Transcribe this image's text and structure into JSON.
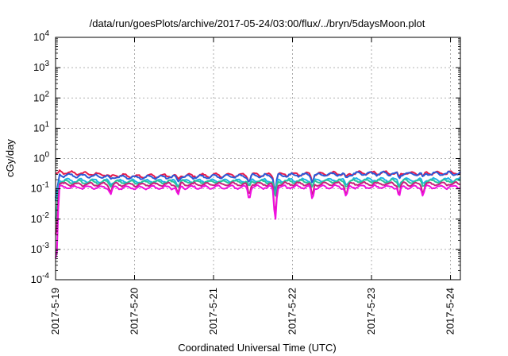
{
  "chart_data": {
    "type": "line",
    "title": "/data/run/goesPlots/archive/2017-05-24/03:00/flux/../bryn/5daysMoon.plot",
    "xlabel": "Coordinated Universal Time (UTC)",
    "ylabel": "cGy/day",
    "yscale": "log",
    "ylim_exponent": [
      -4,
      4
    ],
    "y_tick_labels": [
      {
        "base": "10",
        "exp": "-4"
      },
      {
        "base": "10",
        "exp": "-3"
      },
      {
        "base": "10",
        "exp": "-2"
      },
      {
        "base": "10",
        "exp": "-1"
      },
      {
        "base": "10",
        "exp": "0"
      },
      {
        "base": "10",
        "exp": "1"
      },
      {
        "base": "10",
        "exp": "2"
      },
      {
        "base": "10",
        "exp": "3"
      },
      {
        "base": "10",
        "exp": "4"
      }
    ],
    "x_tick_labels": [
      "2017-5-19",
      "2017-5-20",
      "2017-5-21",
      "2017-5-22",
      "2017-5-23",
      "2017-5-24"
    ],
    "xlim_days": [
      0,
      5.125
    ],
    "grid": true,
    "legend": "none",
    "series": [
      {
        "color": "#e6194b",
        "values_log10": [
          -0.5,
          -0.45,
          -0.58,
          -0.56,
          -0.52,
          -0.48
        ]
      },
      {
        "color": "#2a5ad7",
        "values_log10": [
          -1.3,
          -0.55,
          -0.62,
          -0.6,
          -0.55,
          -0.5
        ]
      },
      {
        "color": "#1fb3e6",
        "values_log10": [
          -1.4,
          -0.72,
          -0.75,
          -0.74,
          -0.72,
          -0.7
        ]
      },
      {
        "color": "#2bc39b",
        "values_log10": [
          -2.0,
          -0.78,
          -0.78,
          -0.77,
          -0.76,
          -0.75
        ]
      },
      {
        "color": "#c8207b",
        "values_log10": [
          -2.5,
          -0.85,
          -0.86,
          -0.85,
          -0.84,
          -0.84
        ]
      },
      {
        "color": "#f010e0",
        "values_log10": [
          -3.3,
          -0.95,
          -0.96,
          -0.95,
          -0.94,
          -0.94
        ]
      }
    ],
    "notable_dips_days": [
      {
        "day": 0.7,
        "depth": 0.25
      },
      {
        "day": 1.55,
        "depth": 0.3
      },
      {
        "day": 2.45,
        "depth": 0.35
      },
      {
        "day": 2.78,
        "depth": 1.05
      },
      {
        "day": 3.25,
        "depth": 0.4
      },
      {
        "day": 3.68,
        "depth": 0.35
      },
      {
        "day": 4.35,
        "depth": 0.35
      },
      {
        "day": 4.65,
        "depth": 0.25
      }
    ]
  }
}
